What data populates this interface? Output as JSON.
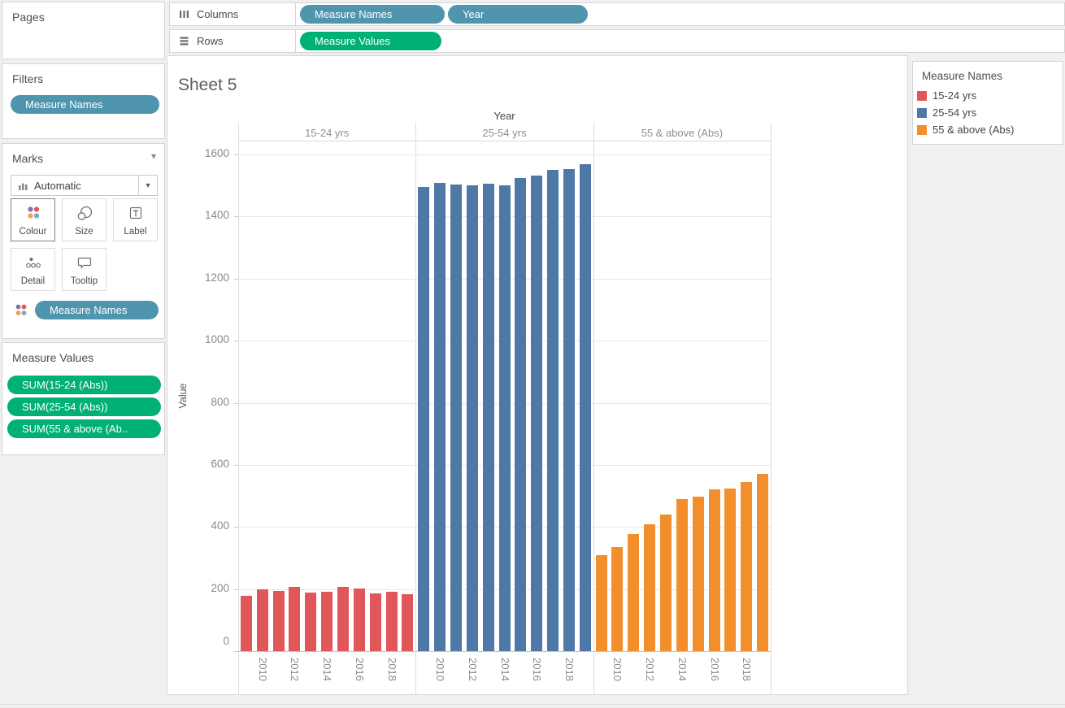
{
  "shelves": {
    "columns": {
      "label": "Columns",
      "pills": [
        "Measure Names",
        "Year"
      ]
    },
    "rows": {
      "label": "Rows",
      "pills": [
        "Measure Values"
      ]
    }
  },
  "sidebar": {
    "pages": {
      "title": "Pages"
    },
    "filters": {
      "title": "Filters",
      "pills": [
        "Measure Names"
      ]
    },
    "marks": {
      "title": "Marks",
      "mark_type": "Automatic",
      "buttons": [
        {
          "label": "Colour"
        },
        {
          "label": "Size"
        },
        {
          "label": "Label"
        },
        {
          "label": "Detail"
        },
        {
          "label": "Tooltip"
        }
      ],
      "pills": [
        "Measure Names"
      ]
    },
    "measure_values": {
      "title": "Measure Values",
      "pills": [
        "SUM(15-24 (Abs))",
        "SUM(25-54 (Abs))",
        "SUM(55 & above (Ab.."
      ]
    }
  },
  "sheet": {
    "title": "Sheet 5"
  },
  "legend": {
    "title": "Measure Names",
    "items": [
      {
        "label": "15-24 yrs",
        "color": "#e15759"
      },
      {
        "label": "25-54 yrs",
        "color": "#4e79a7"
      },
      {
        "label": "55 & above (Abs)",
        "color": "#f28e2b"
      }
    ]
  },
  "colors": {
    "dimension_pill": "#4f95ad",
    "measure_pill": "#00b173",
    "bar_red": "#e15759",
    "bar_blue": "#4e79a7",
    "bar_orange": "#f28e2b",
    "page_background": "#f0f0f0"
  },
  "chart_data": {
    "type": "bar",
    "title": "Sheet 5",
    "col_header": "Year",
    "panels": [
      "15-24 yrs",
      "25-54 yrs",
      "55 & above (Abs)"
    ],
    "x": [
      2009,
      2010,
      2011,
      2012,
      2013,
      2014,
      2015,
      2016,
      2017,
      2018,
      2019
    ],
    "x_tick_labels": [
      "2010",
      "2012",
      "2014",
      "2016",
      "2018"
    ],
    "series": [
      {
        "name": "15-24 yrs",
        "color": "#e15759",
        "values": [
          178,
          198,
          195,
          207,
          188,
          192,
          207,
          201,
          186,
          190,
          184
        ]
      },
      {
        "name": "25-54 yrs",
        "color": "#4e79a7",
        "values": [
          1495,
          1508,
          1504,
          1501,
          1506,
          1500,
          1524,
          1532,
          1551,
          1554,
          1569
        ]
      },
      {
        "name": "55 & above (Abs)",
        "color": "#f28e2b",
        "values": [
          308,
          336,
          378,
          409,
          441,
          489,
          497,
          520,
          524,
          545,
          570
        ]
      }
    ],
    "ylabel": "Value",
    "ylim": [
      0,
      1645
    ],
    "yticks": [
      0,
      200,
      400,
      600,
      800,
      1000,
      1200,
      1400,
      1600
    ],
    "grid": true,
    "legend_position": "right"
  }
}
